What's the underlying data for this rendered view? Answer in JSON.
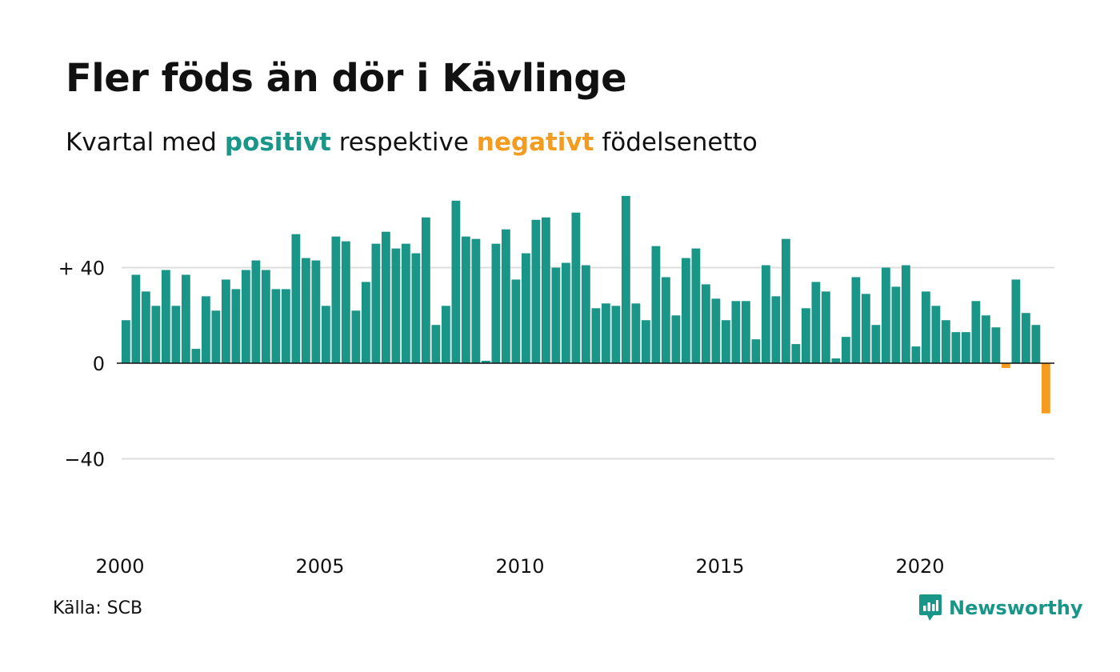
{
  "title": "Fler föds än dör i Kävlinge",
  "subtitle": {
    "before": "Kvartal med ",
    "positive_word": "positivt",
    "middle": " respektive ",
    "negative_word": "negativt",
    "after": " födelsenetto"
  },
  "source": "Källa: SCB",
  "brand": {
    "name": "Newsworthy",
    "icon": "newsworthy-logo-icon"
  },
  "colors": {
    "positive": "#1a9689",
    "negative": "#f39c1f",
    "grid": "#dddddd",
    "axis": "#111111",
    "text": "#111111"
  },
  "chart_data": {
    "type": "bar",
    "x_start": "2000 Q1",
    "frequency": "quarterly",
    "values": [
      18,
      37,
      30,
      24,
      39,
      24,
      37,
      6,
      28,
      22,
      35,
      31,
      39,
      43,
      39,
      31,
      31,
      54,
      44,
      43,
      24,
      53,
      51,
      22,
      34,
      50,
      55,
      48,
      50,
      46,
      61,
      16,
      24,
      68,
      53,
      52,
      1,
      50,
      56,
      35,
      46,
      60,
      61,
      40,
      42,
      63,
      41,
      23,
      25,
      24,
      70,
      25,
      18,
      49,
      36,
      20,
      44,
      48,
      33,
      27,
      18,
      26,
      26,
      10,
      41,
      28,
      52,
      8,
      23,
      34,
      30,
      2,
      11,
      36,
      29,
      16,
      40,
      32,
      41,
      7,
      30,
      24,
      18,
      13,
      13,
      26,
      20,
      15,
      -2,
      35,
      21,
      16,
      -21
    ],
    "x_ticks": [
      "2000",
      "2005",
      "2010",
      "2015",
      "2020"
    ],
    "y_ticks": [
      {
        "value": 40,
        "label": "+ 40"
      },
      {
        "value": 0,
        "label": "0"
      },
      {
        "value": -40,
        "label": "−40"
      }
    ],
    "ylim": [
      -80,
      70
    ],
    "grid": true,
    "legend": "none"
  }
}
